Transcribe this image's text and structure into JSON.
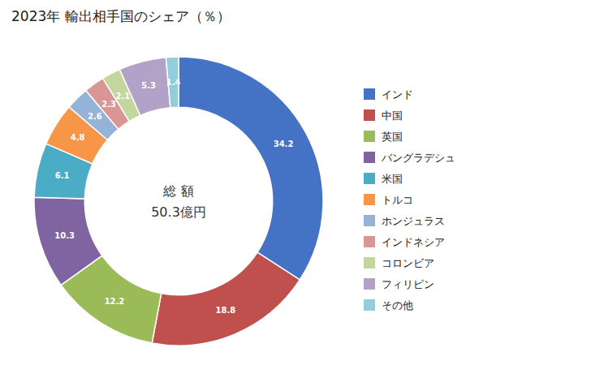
{
  "chart_data": {
    "type": "donut",
    "title": "2023年 輸出相手国のシェア（％）",
    "annotations": [
      "総 額",
      "50.3億円"
    ],
    "categories": [
      "インド",
      "中国",
      "英国",
      "バングラデシュ",
      "米国",
      "トルコ",
      "ホンジュラス",
      "インドネシア",
      "コロンビア",
      "フィリピン",
      "その他"
    ],
    "values": [
      34.2,
      18.8,
      12.2,
      10.3,
      6.1,
      4.8,
      2.6,
      2.3,
      2.1,
      5.3,
      1.4
    ],
    "colors": [
      "#4472C4",
      "#C0504D",
      "#9BBB59",
      "#8064A2",
      "#4BACC6",
      "#F79646",
      "#95B3D7",
      "#D99694",
      "#C3D69B",
      "#B2A2C7",
      "#92CDDC"
    ],
    "data_labels": true,
    "legend": "right"
  }
}
